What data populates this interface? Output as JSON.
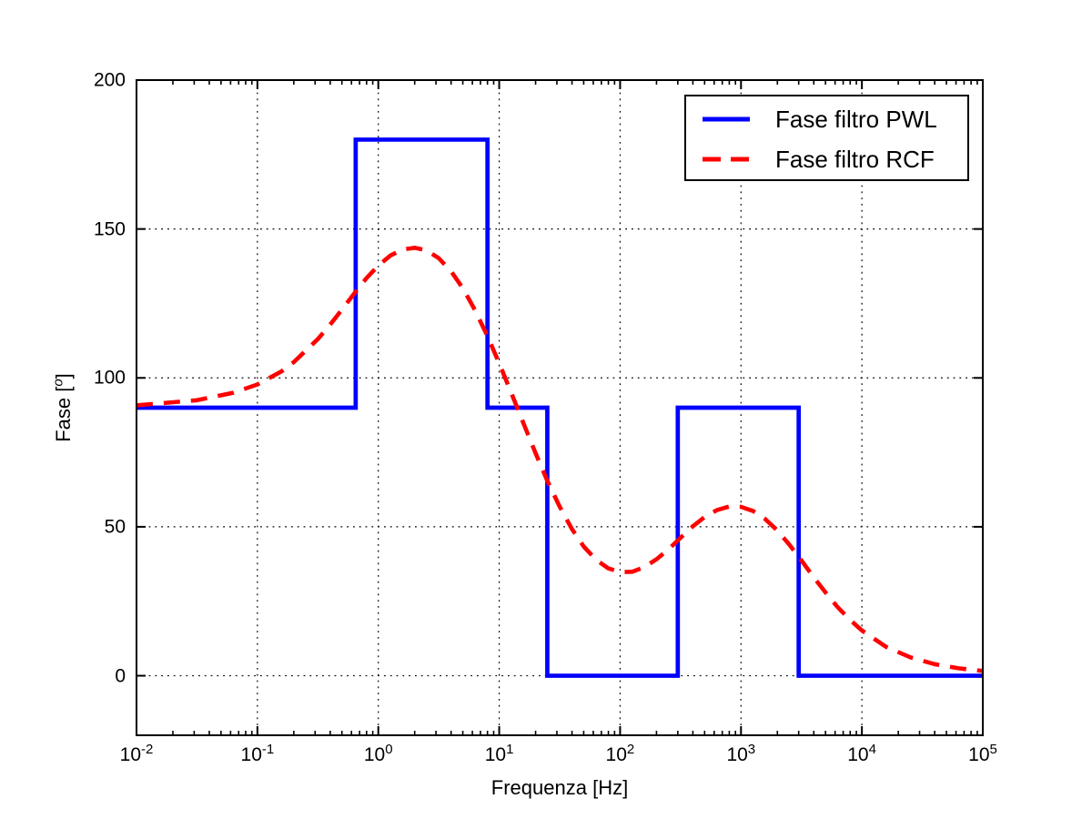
{
  "figure": {
    "background": "#ffffff"
  },
  "chart_data": {
    "type": "line",
    "title": "",
    "xlabel": "Frequenza [Hz]",
    "ylabel": "Fase [°]",
    "ylabel_parts": {
      "prefix": "Fase [",
      "sup": "o",
      "suffix": "]"
    },
    "x_scale": "log",
    "xlim": [
      0.01,
      100000
    ],
    "ylim": [
      -20,
      200
    ],
    "grid": true,
    "grid_color": "#000000",
    "y_ticks": [
      0,
      50,
      100,
      150,
      200
    ],
    "y_tick_labels": [
      "0",
      "50",
      "100",
      "150",
      "200"
    ],
    "x_tick_decades": [
      -2,
      -1,
      0,
      1,
      2,
      3,
      4,
      5
    ],
    "x_tick_labels": [
      {
        "base": "10",
        "exp": "-2"
      },
      {
        "base": "10",
        "exp": "-1"
      },
      {
        "base": "10",
        "exp": "0"
      },
      {
        "base": "10",
        "exp": "1"
      },
      {
        "base": "10",
        "exp": "2"
      },
      {
        "base": "10",
        "exp": "3"
      },
      {
        "base": "10",
        "exp": "4"
      },
      {
        "base": "10",
        "exp": "5"
      }
    ],
    "legend": {
      "position": "northeast",
      "items": [
        {
          "label": "Fase filtro PWL",
          "color": "#0000ff",
          "line_style": "solid"
        },
        {
          "label": "Fase filtro RCF",
          "color": "#ff0000",
          "line_style": "dashed"
        }
      ]
    },
    "series": [
      {
        "name": "Fase filtro PWL",
        "type": "step",
        "color": "#0000ff",
        "line_style": "solid",
        "line_width": 4.7,
        "breakpoints_hz": [
          0.65,
          8,
          25,
          300,
          3000
        ],
        "levels_deg": [
          90,
          180,
          90,
          0,
          90,
          0
        ]
      },
      {
        "name": "Fase filtro RCF",
        "type": "smooth",
        "color": "#ff0000",
        "line_style": "dashed",
        "line_width": 4.6,
        "dash_pattern": [
          18,
          12
        ],
        "points": [
          [
            0.01,
            90.8
          ],
          [
            0.0316,
            92.5
          ],
          [
            0.063,
            95.0
          ],
          [
            0.1,
            97.8
          ],
          [
            0.158,
            102.2
          ],
          [
            0.2,
            105.3
          ],
          [
            0.316,
            113.0
          ],
          [
            0.4,
            117.9
          ],
          [
            0.5,
            122.9
          ],
          [
            0.65,
            129.0
          ],
          [
            0.8,
            133.5
          ],
          [
            1,
            137.7
          ],
          [
            1.26,
            141.1
          ],
          [
            1.58,
            143.1
          ],
          [
            2,
            143.7
          ],
          [
            2.51,
            142.8
          ],
          [
            3.16,
            140.2
          ],
          [
            4,
            135.8
          ],
          [
            5,
            130.1
          ],
          [
            6.3,
            122.8
          ],
          [
            8,
            114.0
          ],
          [
            10,
            104.9
          ],
          [
            12.6,
            94.9
          ],
          [
            14.1,
            90.0
          ],
          [
            16,
            84.4
          ],
          [
            20,
            74.7
          ],
          [
            25,
            65.5
          ],
          [
            31.6,
            56.8
          ],
          [
            40,
            49.2
          ],
          [
            50,
            43.4
          ],
          [
            63,
            39.0
          ],
          [
            79.4,
            36.1
          ],
          [
            100,
            34.8
          ],
          [
            126,
            34.9
          ],
          [
            158,
            36.4
          ],
          [
            200,
            39.1
          ],
          [
            251,
            42.4
          ],
          [
            316,
            46.3
          ],
          [
            398,
            50.1
          ],
          [
            501,
            53.3
          ],
          [
            631,
            55.6
          ],
          [
            794,
            56.8
          ],
          [
            1000,
            56.7
          ],
          [
            1259,
            55.3
          ],
          [
            1585,
            52.6
          ],
          [
            1995,
            48.8
          ],
          [
            2512,
            44.0
          ],
          [
            3162,
            38.7
          ],
          [
            3981,
            33.1
          ],
          [
            5012,
            27.9
          ],
          [
            6310,
            23.0
          ],
          [
            7943,
            18.8
          ],
          [
            10000,
            15.2
          ],
          [
            15850,
            9.7
          ],
          [
            25120,
            6.2
          ],
          [
            39810,
            3.9
          ],
          [
            63100,
            2.5
          ],
          [
            100000,
            1.6
          ]
        ]
      }
    ]
  }
}
